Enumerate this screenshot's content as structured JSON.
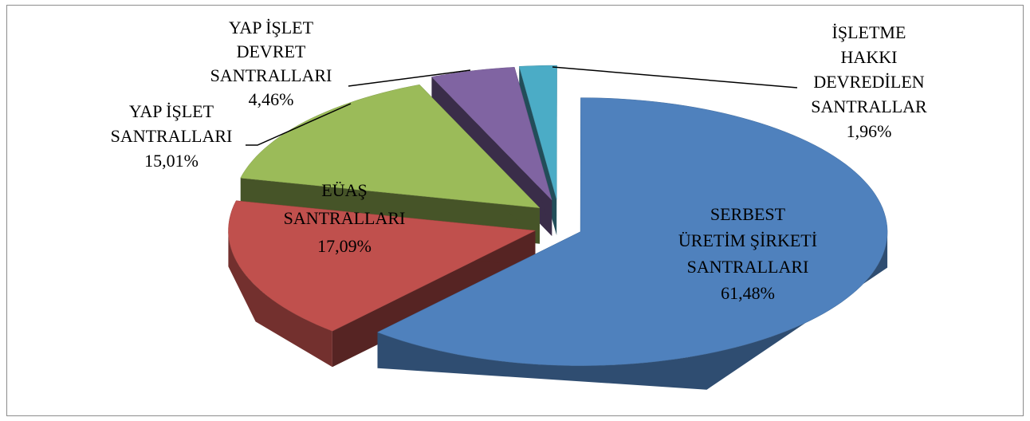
{
  "chart_data": {
    "type": "pie3d",
    "categories": [
      "İŞLETME\nHAKKI\nDEVREDİLEN\nSANTRALLAR",
      "SERBEST\nÜRETİM ŞİRKETİ\nSANTRALLARI",
      "EÜAŞ\nSANTRALLARI",
      "YAP İŞLET\nSANTRALLARI",
      "YAP İŞLET\nDEVRET\nSANTRALLARI"
    ],
    "values": [
      1.96,
      61.48,
      17.09,
      15.01,
      4.46
    ],
    "value_labels": [
      "1,96%",
      "61,48%",
      "17,09%",
      "15,01%",
      "4,46%"
    ],
    "colors": [
      "#4bacc6",
      "#4f81bd",
      "#c0504d",
      "#9bbb59",
      "#8064a2"
    ]
  }
}
